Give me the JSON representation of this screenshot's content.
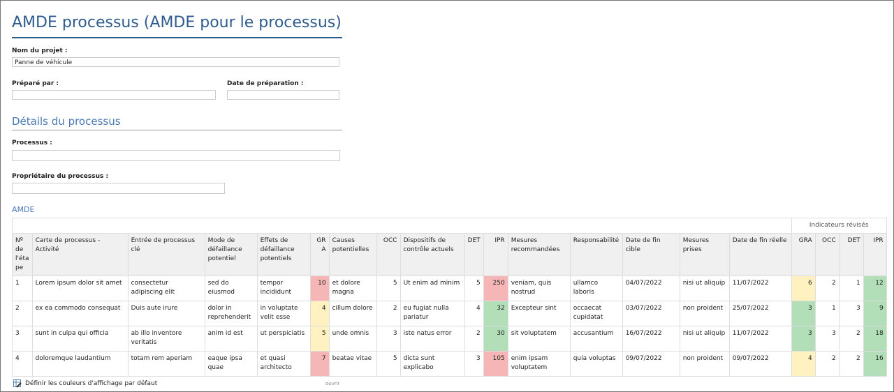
{
  "title": "AMDE processus (AMDE pour le processus)",
  "project": {
    "label": "Nom du projet :",
    "value": "Panne de véhicule"
  },
  "prepared_by": {
    "label": "Préparé par :",
    "value": ""
  },
  "prep_date": {
    "label": "Date de préparation :",
    "value": ""
  },
  "details_title": "Détails du processus",
  "process": {
    "label": "Processus :",
    "value": ""
  },
  "owner": {
    "label": "Propriétaire du processus :",
    "value": ""
  },
  "amde_title": "AMDE",
  "table": {
    "group_header": "Indicateurs révisés",
    "headers": [
      "Nº de l'éta pe",
      "Carte de processus - Activité",
      "Entrée de processus clé",
      "Mode de défaillance potentiel",
      "Effets de défaillance potentiels",
      "GR A",
      "Causes potentielles",
      "OCC",
      "Dispositifs de contrôle actuels",
      "DET",
      "IPR",
      "Mesures recommandées",
      "Responsabilité",
      "Date de fin cible",
      "Mesures prises",
      "Date de fin réelle",
      "GRA",
      "OCC",
      "DET",
      "IPR"
    ],
    "rows": [
      [
        "1",
        "Lorem ipsum dolor sit amet",
        "consectetur adipiscing elit",
        "sed do eiusmod",
        "tempor incididunt",
        "10",
        "et dolore magna",
        "5",
        "Ut enim ad minim",
        "5",
        "250",
        "veniam, quis nostrud",
        "ullamco laboris",
        "04/07/2022",
        "nisi ut aliquip",
        "11/07/2022",
        "6",
        "2",
        "1",
        "12"
      ],
      [
        "2",
        "ex ea commodo consequat",
        "Duis aute irure",
        "dolor in reprehenderit",
        "in voluptate velit esse",
        "4",
        "cillum dolore",
        "2",
        "eu fugiat nulla pariatur",
        "4",
        "32",
        "Excepteur sint",
        "occaecat cupidatat",
        "03/07/2022",
        "non proident",
        "25/07/2022",
        "3",
        "1",
        "3",
        "9"
      ],
      [
        "3",
        "sunt in culpa qui officia",
        "ab illo inventore veritatis",
        "anim id est",
        "ut perspiciatis",
        "5",
        "unde omnis",
        "3",
        "iste natus error",
        "2",
        "30",
        "sit voluptatem",
        "accusantium",
        "16/07/2022",
        "nisi ut aliquip",
        "11/07/2022",
        "3",
        "3",
        "2",
        "18"
      ],
      [
        "4",
        "doloremque laudantium",
        "totam rem aperiam",
        "eaque ipsa quae",
        "et quasi architecto",
        "7",
        "beatae vitae",
        "5",
        "dicta sunt explicabo",
        "3",
        "105",
        "enim ipsam voluptatem",
        "quia voluptas",
        "09/07/2022",
        "non proident",
        "09/07/2022",
        "4",
        "2",
        "2",
        "16"
      ]
    ],
    "cell_colors": {
      "0": {
        "5": "red",
        "10": "red",
        "16": "yellow",
        "19": "green"
      },
      "1": {
        "5": "yellow",
        "10": "green",
        "16": "green",
        "19": "green"
      },
      "2": {
        "5": "yellow",
        "10": "green",
        "16": "green",
        "19": "green"
      },
      "3": {
        "5": "red",
        "10": "red",
        "16": "yellow",
        "19": "green"
      }
    },
    "colors": {
      "red": "#f7b6b6",
      "yellow": "#fff2c0",
      "green": "#b2dfb8"
    }
  },
  "footer": {
    "default_colors_label": "Définir les couleurs d'affichage par défaut",
    "open_label": "ouvrir"
  }
}
